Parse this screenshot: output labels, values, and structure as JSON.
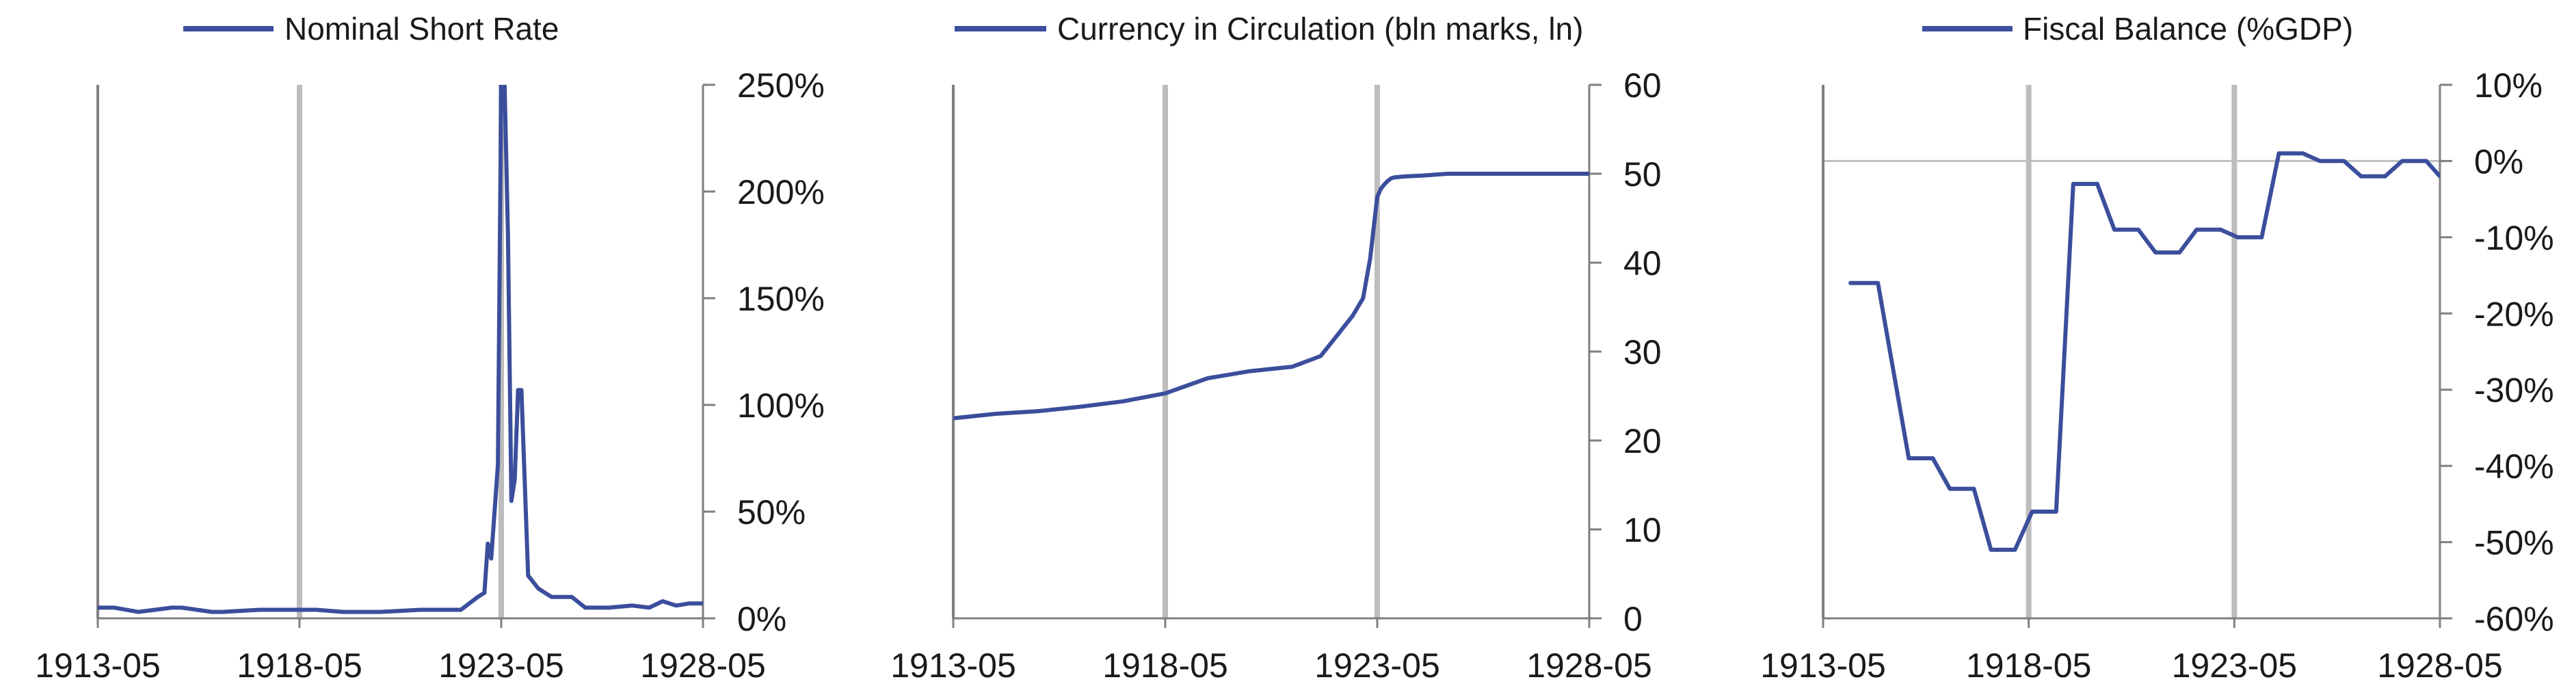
{
  "colors": {
    "series": "#3b4e9c",
    "axis": "#7f7f7f",
    "event_line": "#bdbdbd",
    "gridline": "#bfbfbf"
  },
  "chart_data": [
    {
      "type": "line",
      "series": [
        {
          "name": "Nominal Short Rate",
          "x": [
            "1913-05",
            "1913-10",
            "1914-05",
            "1915-03",
            "1915-06",
            "1916-03",
            "1916-06",
            "1917-05",
            "1918-05",
            "1918-10",
            "1919-06",
            "1920-05",
            "1921-05",
            "1922-05",
            "1922-10",
            "1922-12",
            "1923-01",
            "1923-02",
            "1923-04",
            "1923-05",
            "1923-06",
            "1923-07",
            "1923-08",
            "1923-09",
            "1923-10",
            "1923-11",
            "1924-01",
            "1924-02",
            "1924-04",
            "1924-06",
            "1924-08",
            "1924-10",
            "1925-02",
            "1925-06",
            "1926-01",
            "1926-08",
            "1927-01",
            "1927-05",
            "1927-09",
            "1928-01",
            "1928-05"
          ],
          "y": [
            5,
            5,
            3,
            5,
            5,
            3,
            3,
            4,
            4,
            4,
            3,
            3,
            4,
            4,
            10,
            12,
            35,
            28,
            72,
            250,
            250,
            180,
            55,
            65,
            107,
            107,
            20,
            18,
            14,
            12,
            10,
            10,
            10,
            5,
            5,
            6,
            5,
            8,
            6,
            7,
            7
          ]
        }
      ],
      "x_ticks": [
        "1913-05",
        "1918-05",
        "1923-05",
        "1928-05"
      ],
      "y_ticks": [
        "0%",
        "50%",
        "100%",
        "150%",
        "200%",
        "250%"
      ],
      "ylim": [
        0,
        250
      ],
      "y_axis_side": "right",
      "event_lines": [
        "1918-05",
        "1923-05"
      ],
      "legend": "top",
      "grid": false
    },
    {
      "type": "line",
      "series": [
        {
          "name": "Currency in Circulation (bln marks, ln)",
          "x": [
            "1913-05",
            "1914-05",
            "1915-05",
            "1916-05",
            "1917-05",
            "1918-05",
            "1919-05",
            "1920-05",
            "1921-05",
            "1922-01",
            "1922-06",
            "1922-10",
            "1923-01",
            "1923-03",
            "1923-05",
            "1923-06",
            "1923-07",
            "1923-08",
            "1923-09",
            "1923-10",
            "1924-01",
            "1924-06",
            "1925-01",
            "1926-01",
            "1927-01",
            "1928-05"
          ],
          "y": [
            22.5,
            23,
            23.3,
            23.8,
            24.4,
            25.3,
            27,
            27.8,
            28.3,
            29.5,
            32,
            34,
            36,
            40.5,
            47.4,
            48.3,
            48.8,
            49.2,
            49.5,
            49.6,
            49.7,
            49.8,
            50,
            50,
            50,
            50
          ]
        }
      ],
      "x_ticks": [
        "1913-05",
        "1918-05",
        "1923-05",
        "1928-05"
      ],
      "y_ticks": [
        "0",
        "10",
        "20",
        "30",
        "40",
        "50",
        "60"
      ],
      "ylim": [
        0,
        60
      ],
      "y_axis_side": "right",
      "event_lines": [
        "1918-05",
        "1923-05"
      ],
      "legend": "top",
      "grid": false
    },
    {
      "type": "line",
      "series": [
        {
          "name": "Fiscal Balance (%GDP)",
          "x": [
            "1914-01",
            "1914-09",
            "1915-06",
            "1916-01",
            "1916-06",
            "1917-01",
            "1917-06",
            "1918-01",
            "1918-06",
            "1919-01",
            "1919-06",
            "1920-01",
            "1920-06",
            "1921-01",
            "1921-06",
            "1922-01",
            "1922-06",
            "1923-01",
            "1923-06",
            "1924-01",
            "1924-06",
            "1925-01",
            "1925-06",
            "1926-01",
            "1926-06",
            "1927-01",
            "1927-06",
            "1928-01",
            "1928-05"
          ],
          "y": [
            -16,
            -16,
            -39,
            -39,
            -43,
            -43,
            -51,
            -51,
            -46,
            -46,
            -3,
            -3,
            -9,
            -9,
            -12,
            -12,
            -9,
            -9,
            -10,
            -10,
            1,
            1,
            0,
            0,
            -2,
            -2,
            0,
            0,
            -2
          ]
        }
      ],
      "x_ticks": [
        "1913-05",
        "1918-05",
        "1923-05",
        "1928-05"
      ],
      "y_ticks": [
        "-60%",
        "-50%",
        "-40%",
        "-30%",
        "-20%",
        "-10%",
        "0%",
        "10%"
      ],
      "ylim": [
        -60,
        10
      ],
      "y_axis_side": "right",
      "event_lines": [
        "1918-05",
        "1923-05"
      ],
      "legend": "top",
      "grid": false
    }
  ]
}
